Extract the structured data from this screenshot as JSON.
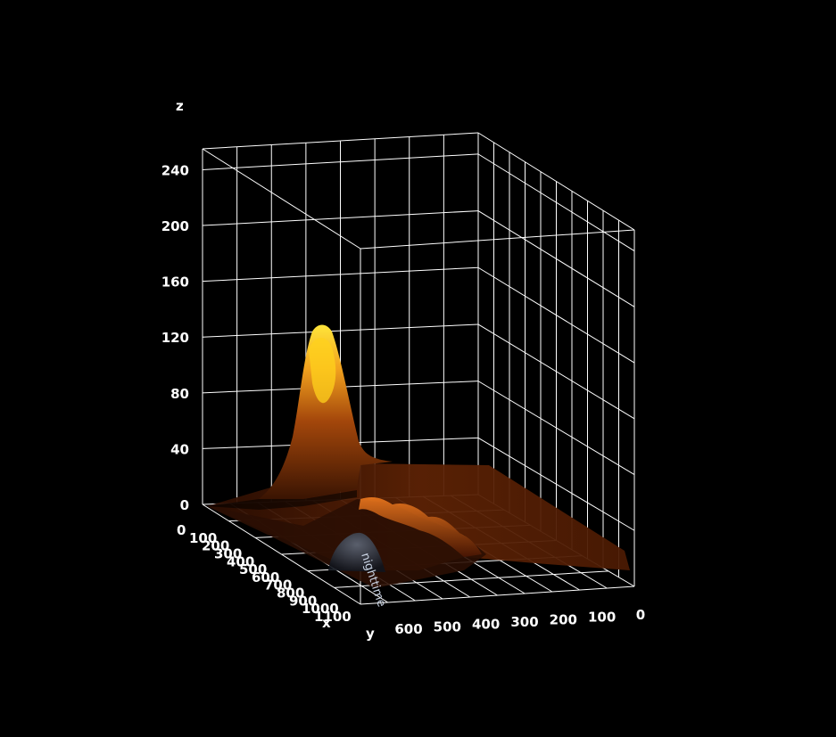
{
  "chart_data": {
    "type": "surface3d",
    "xlabel": "x",
    "ylabel": "y",
    "zlabel": "z",
    "x_ticks": [
      "0",
      "100",
      "200",
      "300",
      "400",
      "500",
      "600",
      "700",
      "800",
      "900",
      "1000",
      "1100"
    ],
    "y_ticks": [
      "600",
      "500",
      "400",
      "300",
      "200",
      "100",
      "0"
    ],
    "z_ticks": [
      "0",
      "40",
      "80",
      "120",
      "160",
      "200",
      "240"
    ],
    "xlim": [
      0,
      1100
    ],
    "ylim": [
      0,
      650
    ],
    "zlim": [
      0,
      255
    ],
    "grid": true,
    "background": "#000000",
    "grid_color": "#ffffff",
    "colormap": [
      "#1a0800",
      "#5a1e03",
      "#a8470a",
      "#e88a1a",
      "#ffd21c"
    ],
    "peak": {
      "x": 250,
      "y": 520,
      "z": 130
    },
    "watermark": "nighttime"
  }
}
